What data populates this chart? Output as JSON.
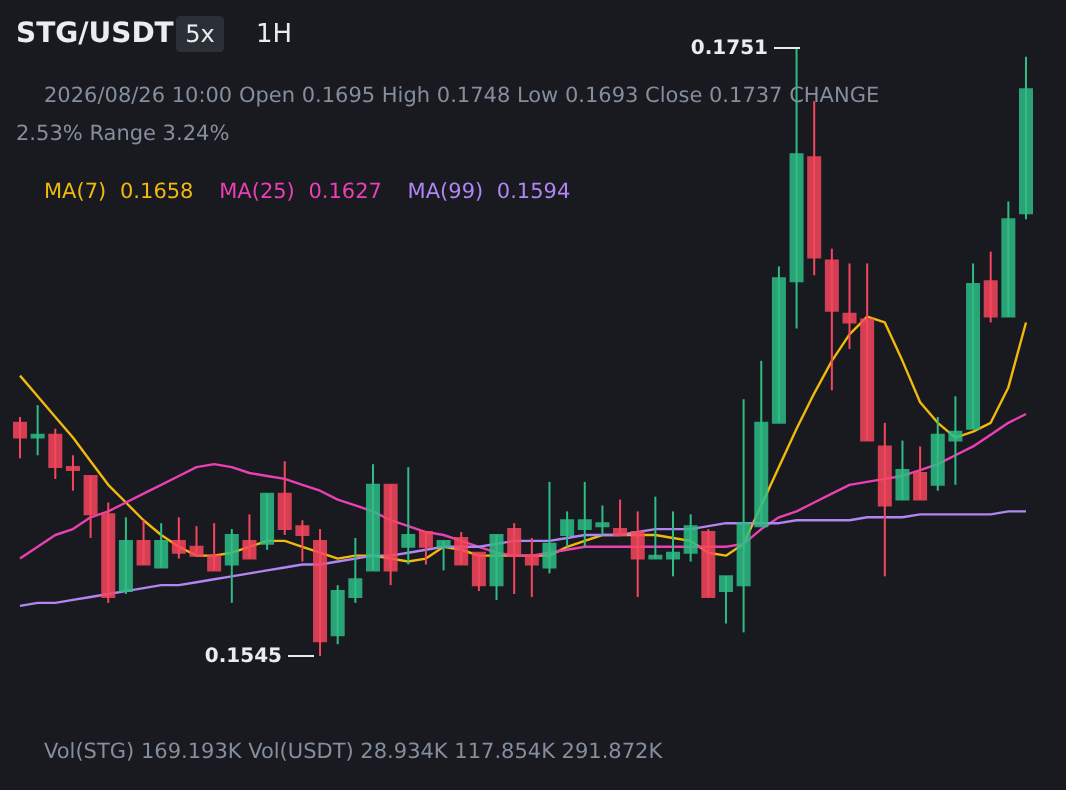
{
  "chart_data": {
    "type": "candlestick",
    "title": "STG/USDT",
    "categories": [
      null,
      null,
      null,
      null,
      null,
      null,
      null,
      null,
      null,
      null,
      null,
      null,
      null,
      null,
      null,
      null,
      null,
      null,
      null,
      null,
      null,
      null,
      null,
      null,
      null,
      null,
      null,
      null,
      null,
      null,
      null,
      null,
      null,
      null,
      null,
      null,
      null,
      null,
      null,
      null,
      null,
      null,
      null,
      null,
      null,
      null,
      null,
      null,
      null,
      null,
      null,
      null,
      null,
      null,
      null,
      null,
      null,
      null
    ],
    "ohlc": [
      [
        0.1624,
        0.1626,
        0.1612,
        0.1619
      ],
      [
        0.1619,
        0.163,
        0.1613,
        0.162
      ],
      [
        0.162,
        0.1622,
        0.1605,
        0.1609
      ],
      [
        0.1609,
        0.1613,
        0.1601,
        0.1608
      ],
      [
        0.1606,
        0.1606,
        0.1585,
        0.1593
      ],
      [
        0.1593,
        0.1597,
        0.1563,
        0.1565
      ],
      [
        0.1567,
        0.1592,
        0.1566,
        0.1584
      ],
      [
        0.1584,
        0.1591,
        0.1576,
        0.1576
      ],
      [
        0.1575,
        0.159,
        0.1575,
        0.1584
      ],
      [
        0.1584,
        0.1592,
        0.1578,
        0.158
      ],
      [
        0.1582,
        0.1589,
        0.1579,
        0.1579
      ],
      [
        0.1579,
        0.159,
        0.1574,
        0.1574
      ],
      [
        0.1576,
        0.1588,
        0.1563,
        0.1586
      ],
      [
        0.1584,
        0.1593,
        0.1578,
        0.1578
      ],
      [
        0.1583,
        0.16,
        0.1581,
        0.16
      ],
      [
        0.16,
        0.1611,
        0.1586,
        0.1588
      ],
      [
        0.1589,
        0.1591,
        0.1577,
        0.1586
      ],
      [
        0.1584,
        0.1588,
        0.1545,
        0.155
      ],
      [
        0.1552,
        0.1569,
        0.1549,
        0.1567
      ],
      [
        0.1565,
        0.1585,
        0.1563,
        0.1571
      ],
      [
        0.1574,
        0.161,
        0.1574,
        0.1603
      ],
      [
        0.1603,
        0.1603,
        0.1569,
        0.1574
      ],
      [
        0.1582,
        0.1609,
        0.1576,
        0.1586
      ],
      [
        0.1587,
        0.1587,
        0.1576,
        0.1582
      ],
      [
        0.1582,
        0.1584,
        0.1574,
        0.1584
      ],
      [
        0.1585,
        0.1587,
        0.1576,
        0.1576
      ],
      [
        0.158,
        0.158,
        0.1567,
        0.1569
      ],
      [
        0.1569,
        0.1586,
        0.1564,
        0.1586
      ],
      [
        0.1588,
        0.159,
        0.1566,
        0.1579
      ],
      [
        0.1579,
        0.1585,
        0.1565,
        0.1576
      ],
      [
        0.1575,
        0.1604,
        0.1573,
        0.1583
      ],
      [
        0.1586,
        0.1594,
        0.1582,
        0.1591
      ],
      [
        0.1588,
        0.1604,
        0.1582,
        0.1591
      ],
      [
        0.1589,
        0.1596,
        0.1586,
        0.159
      ],
      [
        0.1588,
        0.1598,
        0.1586,
        0.1586
      ],
      [
        0.1587,
        0.1594,
        0.1565,
        0.1578
      ],
      [
        0.1578,
        0.1599,
        0.1578,
        0.1579
      ],
      [
        0.1578,
        0.1594,
        0.1572,
        0.158
      ],
      [
        0.158,
        0.1593,
        0.1577,
        0.1589
      ],
      [
        0.1587,
        0.1588,
        0.1565,
        0.1565
      ],
      [
        0.1567,
        0.1572,
        0.1556,
        0.1572
      ],
      [
        0.1569,
        0.1632,
        0.1553,
        0.159
      ],
      [
        0.1589,
        0.1645,
        0.1589,
        0.1624
      ],
      [
        0.1624,
        0.1677,
        0.1624,
        0.1673
      ],
      [
        0.1672,
        0.1751,
        0.1656,
        0.1715
      ],
      [
        0.1714,
        0.1733,
        0.1674,
        0.168
      ],
      [
        0.1679,
        0.1683,
        0.1635,
        0.1662
      ],
      [
        0.1661,
        0.1678,
        0.1649,
        0.1658
      ],
      [
        0.1659,
        0.1678,
        0.1618,
        0.1618
      ],
      [
        0.1616,
        0.1624,
        0.1572,
        0.1596
      ],
      [
        0.1598,
        0.1618,
        0.1598,
        0.1608
      ],
      [
        0.1607,
        0.1616,
        0.1598,
        0.1598
      ],
      [
        0.1603,
        0.1626,
        0.1601,
        0.162
      ],
      [
        0.1618,
        0.1633,
        0.1603,
        0.1621
      ],
      [
        0.1622,
        0.1678,
        0.1622,
        0.1671
      ],
      [
        0.1672,
        0.1682,
        0.1658,
        0.166
      ],
      [
        0.166,
        0.1699,
        0.166,
        0.1693
      ],
      [
        0.1695,
        0.1748,
        0.1693,
        0.1737
      ]
    ],
    "colors": [
      "#f6465d",
      "#2ebd85",
      "#f6465d",
      "#f6465d",
      "#f6465d",
      "#f6465d",
      "#2ebd85",
      "#f6465d",
      "#2ebd85",
      "#f6465d",
      "#f6465d",
      "#f6465d",
      "#2ebd85",
      "#f6465d",
      "#2ebd85",
      "#f6465d",
      "#f6465d",
      "#f6465d",
      "#2ebd85",
      "#2ebd85",
      "#2ebd85",
      "#f6465d",
      "#2ebd85",
      "#f6465d",
      "#2ebd85",
      "#f6465d",
      "#f6465d",
      "#2ebd85",
      "#f6465d",
      "#f6465d",
      "#2ebd85",
      "#2ebd85",
      "#2ebd85",
      "#2ebd85",
      "#f6465d",
      "#f6465d",
      "#2ebd85",
      "#2ebd85",
      "#2ebd85",
      "#f6465d",
      "#2ebd85",
      "#2ebd85",
      "#2ebd85",
      "#2ebd85",
      "#2ebd85",
      "#f6465d",
      "#f6465d",
      "#f6465d",
      "#f6465d",
      "#f6465d",
      "#2ebd85",
      "#f6465d",
      "#2ebd85",
      "#2ebd85",
      "#2ebd85",
      "#f6465d",
      "#2ebd85",
      "#2ebd85"
    ],
    "series": [
      {
        "name": "MA(7)",
        "type": "line",
        "color": "#f0b90b",
        "values": [
          0.164,
          0.1633,
          0.1626,
          0.1619,
          0.1611,
          0.1603,
          0.1597,
          0.1591,
          0.1586,
          0.1582,
          0.1579,
          0.1579,
          0.158,
          0.1582,
          0.1584,
          0.1584,
          0.1582,
          0.158,
          0.1578,
          0.1579,
          0.1579,
          0.1578,
          0.1577,
          0.1578,
          0.1582,
          0.1581,
          0.1579,
          0.1579,
          0.1579,
          0.1579,
          0.1579,
          0.1582,
          0.1584,
          0.1586,
          0.1586,
          0.1586,
          0.1586,
          0.1585,
          0.1584,
          0.158,
          0.1579,
          0.1583,
          null,
          0.1609,
          0.1622,
          0.1634,
          0.1645,
          0.1654,
          0.166,
          0.1658,
          0.1645,
          0.1631,
          0.1624,
          0.1619,
          0.1621,
          0.1624,
          0.1636,
          0.1658
        ]
      },
      {
        "name": "MA(25)",
        "type": "line",
        "color": "#eb40b5",
        "values": [
          0.1578,
          0.1582,
          0.1586,
          0.1588,
          0.1592,
          0.1594,
          0.1597,
          0.16,
          0.1603,
          0.1606,
          0.1609,
          0.161,
          0.1609,
          0.1607,
          0.1606,
          0.1605,
          0.1603,
          0.1601,
          0.1598,
          0.1596,
          0.1594,
          0.1591,
          0.1589,
          0.1587,
          0.1586,
          0.1584,
          0.1582,
          0.158,
          0.1579,
          0.1579,
          0.158,
          0.1581,
          0.1582,
          0.1582,
          0.1582,
          0.1582,
          0.1582,
          0.1582,
          0.1582,
          0.1582,
          0.1582,
          0.1583,
          0.1588,
          0.1592,
          0.1594,
          0.1597,
          0.16,
          0.1603,
          0.1604,
          0.1605,
          0.1606,
          0.1608,
          0.161,
          0.1613,
          0.1616,
          0.162,
          0.1624,
          0.1627
        ]
      },
      {
        "name": "MA(99)",
        "type": "line",
        "color": "#b185f2",
        "values": [
          0.1562,
          0.1563,
          0.1563,
          0.1564,
          0.1565,
          0.1566,
          0.1567,
          0.1568,
          0.1569,
          0.1569,
          0.157,
          0.1571,
          0.1572,
          0.1573,
          0.1574,
          0.1575,
          0.1576,
          0.1576,
          0.1577,
          0.1578,
          0.1579,
          0.1579,
          0.158,
          0.1581,
          0.1582,
          0.1582,
          0.1582,
          0.1583,
          0.1584,
          0.1584,
          0.1584,
          0.1585,
          0.1586,
          0.1586,
          0.1586,
          0.1587,
          0.1588,
          0.1588,
          0.1588,
          0.1589,
          0.159,
          0.159,
          0.159,
          0.159,
          0.1591,
          0.1591,
          0.1591,
          0.1591,
          0.1592,
          0.1592,
          0.1592,
          0.1593,
          0.1593,
          0.1593,
          0.1593,
          0.1593,
          0.1594,
          0.1594
        ]
      }
    ],
    "legend": "top left",
    "annotations": [
      "5x",
      "1H",
      "2026/08/26 10:00  Open 0.1695  High 0.1748  Low 0.1693  Close 0.1737  CHANGE",
      "2.53%  Range 3.24%",
      "Vol(STG) 169.193K   Vol(USDT) 28.934K   117.854K   291.872K",
      "0.1751",
      "0.1545",
      "0.1658",
      "0.1627",
      "0.1594"
    ]
  }
}
